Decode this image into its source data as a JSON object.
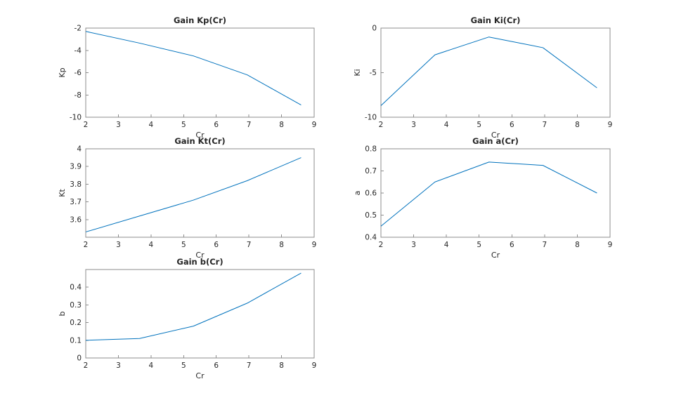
{
  "figure": {
    "background": "#ffffff"
  },
  "style": {
    "axis_color": "#8c8c8c",
    "text_color": "#262626",
    "background": "#ffffff"
  },
  "chart_data": [
    {
      "type": "line",
      "title": "Gain Kp(Cr)",
      "xlabel": "Cr",
      "ylabel": "Kp",
      "x": [
        2,
        3.65,
        5.3,
        6.95,
        8.6
      ],
      "y": [
        -2.3,
        -3.35,
        -4.5,
        -6.2,
        -8.9
      ],
      "xlim": [
        2,
        9
      ],
      "ylim": [
        -10,
        -2
      ],
      "xticks": [
        2,
        3,
        4,
        5,
        6,
        7,
        8,
        9
      ],
      "yticks": [
        -10,
        -8,
        -6,
        -4,
        -2
      ],
      "line_color": "#0072BD",
      "grid": false,
      "legend": null
    },
    {
      "type": "line",
      "title": "Gain Ki(Cr)",
      "xlabel": "Cr",
      "ylabel": "Ki",
      "x": [
        2,
        3.65,
        5.3,
        6.95,
        8.6
      ],
      "y": [
        -8.7,
        -3.0,
        -1.0,
        -2.2,
        -6.7
      ],
      "xlim": [
        2,
        9
      ],
      "ylim": [
        -10,
        0
      ],
      "xticks": [
        2,
        3,
        4,
        5,
        6,
        7,
        8,
        9
      ],
      "yticks": [
        -10,
        -5,
        0
      ],
      "line_color": "#0072BD",
      "grid": false,
      "legend": null
    },
    {
      "type": "line",
      "title": "Gain Kt(Cr)",
      "xlabel": "Cr",
      "ylabel": "Kt",
      "x": [
        2,
        3.65,
        5.3,
        6.95,
        8.6
      ],
      "y": [
        3.53,
        3.62,
        3.71,
        3.82,
        3.95
      ],
      "xlim": [
        2,
        9
      ],
      "ylim": [
        3.5,
        4
      ],
      "xticks": [
        2,
        3,
        4,
        5,
        6,
        7,
        8,
        9
      ],
      "yticks": [
        3.6,
        3.7,
        3.8,
        3.9,
        4
      ],
      "line_color": "#0072BD",
      "grid": false,
      "legend": null
    },
    {
      "type": "line",
      "title": "Gain a(Cr)",
      "xlabel": "Cr",
      "ylabel": "a",
      "x": [
        2,
        3.65,
        5.3,
        6.95,
        8.6
      ],
      "y": [
        0.45,
        0.65,
        0.74,
        0.725,
        0.6
      ],
      "xlim": [
        2,
        9
      ],
      "ylim": [
        0.4,
        0.8
      ],
      "xticks": [
        2,
        3,
        4,
        5,
        6,
        7,
        8,
        9
      ],
      "yticks": [
        0.4,
        0.5,
        0.6,
        0.7,
        0.8
      ],
      "line_color": "#0072BD",
      "grid": false,
      "legend": null
    },
    {
      "type": "line",
      "title": "Gain b(Cr)",
      "xlabel": "Cr",
      "ylabel": "b",
      "x": [
        2,
        3.65,
        5.3,
        6.95,
        8.6
      ],
      "y": [
        0.1,
        0.11,
        0.18,
        0.31,
        0.48
      ],
      "xlim": [
        2,
        9
      ],
      "ylim": [
        0,
        0.5
      ],
      "xticks": [
        2,
        3,
        4,
        5,
        6,
        7,
        8,
        9
      ],
      "yticks": [
        0,
        0.1,
        0.2,
        0.3,
        0.4
      ],
      "line_color": "#0072BD",
      "grid": false,
      "legend": null
    }
  ]
}
